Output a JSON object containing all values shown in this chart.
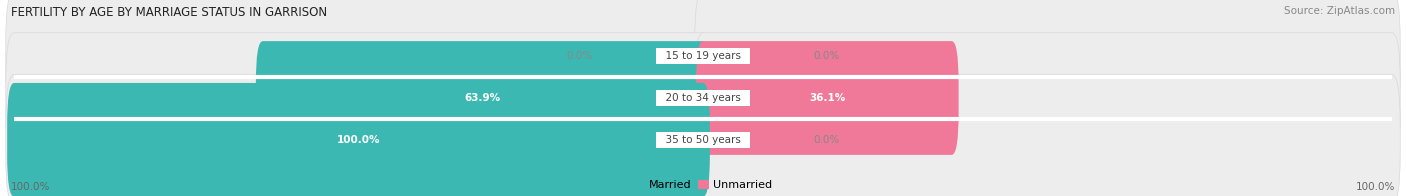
{
  "title": "FERTILITY BY AGE BY MARRIAGE STATUS IN GARRISON",
  "source": "Source: ZipAtlas.com",
  "categories": [
    "15 to 19 years",
    "20 to 34 years",
    "35 to 50 years"
  ],
  "married_values": [
    0.0,
    63.9,
    100.0
  ],
  "unmarried_values": [
    0.0,
    36.1,
    0.0
  ],
  "married_color": "#3CB8B2",
  "unmarried_color": "#F07898",
  "bar_bg_color": "#EDEDED",
  "bar_bg_edge_color": "#D8D8D8",
  "title_fontsize": 8.5,
  "source_fontsize": 7.5,
  "label_fontsize": 7.5,
  "category_fontsize": 7.5,
  "legend_fontsize": 8,
  "axis_label_left": "100.0%",
  "axis_label_right": "100.0%",
  "center_label_bg": "white",
  "value_color_on_bar": "white",
  "value_color_off_bar": "#888888"
}
